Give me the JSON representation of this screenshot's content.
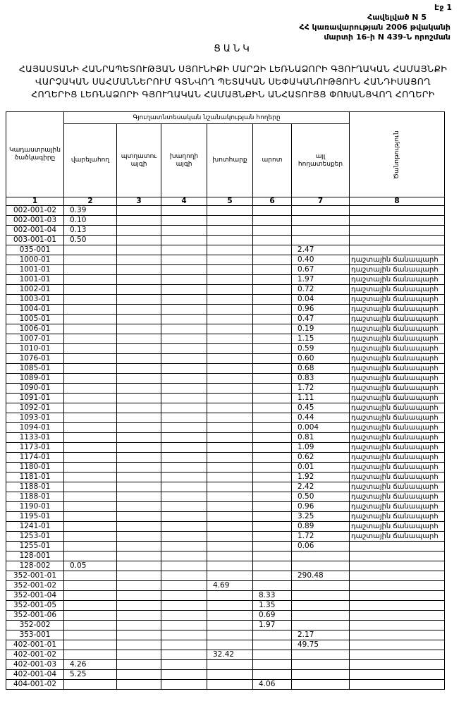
{
  "header": {
    "page": "Էջ 1",
    "annex": "Հավելված N 5",
    "decree_line1": "ՀՀ կառավարության 2006 թվականի",
    "decree_line2": "մարտի 16-ի N 439-Ն որոշման",
    "title": "ՑԱՆԿ",
    "subtitle": [
      "ՀԱՅԱՍՏԱՆԻ ՀԱՆՐԱՊԵՏՈՒԹՅԱՆ ՍՅՈՒՆԻՔԻ ՄԱՐԶԻ ԼԵՌՆԱՁՈՐԻ ԳՅՈՒՂԱԿԱՆ ՀԱՄԱՅՆՔԻ",
      "ՎԱՐՉԱԿԱՆ ՍԱՀՄԱՆՆԵՐՈՒՄ ԳՏՆՎՈՂ ՊԵՏԱԿԱՆ ՍԵՓԱԿԱՆՈՒԹՅՈՒՆ ՀԱՆԴԻՍԱՑՈՂ",
      "ՀՈՂԵՐԻՑ ԼԵՌՆԱՁՈՐԻ ԳՅՈՒՂԱԿԱՆ ՀԱՄԱՅՆՔԻՆ ԱՆՀԱՏՈՒՅՑ ՓՈԽԱՆՑՎՈՂ ՀՈՂԵՐԻ"
    ]
  },
  "table": {
    "group_header": "Գյուղատնտեսական նշանակության հողերը",
    "columns": [
      "Կադաստրային ծածկագիրը",
      "վարելահող",
      "պտղատու այգի",
      "խաղողի այգի",
      "խոտհարք",
      "արոտ",
      "այլ հողատեսքեր",
      "Ծանոթություն"
    ],
    "numbers": [
      "1",
      "2",
      "3",
      "4",
      "5",
      "6",
      "7",
      "8"
    ],
    "rows": [
      [
        "002-001-02",
        "0.39",
        null,
        null,
        null,
        null,
        null,
        null
      ],
      [
        "002-001-03",
        "0.10",
        null,
        null,
        null,
        null,
        null,
        null
      ],
      [
        "002-001-04",
        "0.13",
        null,
        null,
        null,
        null,
        null,
        null
      ],
      [
        "003-001-01",
        "0.50",
        null,
        null,
        null,
        null,
        null,
        null
      ],
      [
        "035-001",
        null,
        null,
        null,
        null,
        null,
        "2.47",
        null
      ],
      [
        "1000-01",
        null,
        null,
        null,
        null,
        null,
        "0.40",
        "դաշտային ճանապարհ"
      ],
      [
        "1001-01",
        null,
        null,
        null,
        null,
        null,
        "0.67",
        "դաշտային ճանապարհ"
      ],
      [
        "1001-01",
        null,
        null,
        null,
        null,
        null,
        "1.97",
        "դաշտային ճանապարհ"
      ],
      [
        "1002-01",
        null,
        null,
        null,
        null,
        null,
        "0.72",
        "դաշտային ճանապարհ"
      ],
      [
        "1003-01",
        null,
        null,
        null,
        null,
        null,
        "0.04",
        "դաշտային ճանապարհ"
      ],
      [
        "1004-01",
        null,
        null,
        null,
        null,
        null,
        "0.96",
        "դաշտային ճանապարհ"
      ],
      [
        "1005-01",
        null,
        null,
        null,
        null,
        null,
        "0.47",
        "դաշտային ճանապարհ"
      ],
      [
        "1006-01",
        null,
        null,
        null,
        null,
        null,
        "0.19",
        "դաշտային ճանապարհ"
      ],
      [
        "1007-01",
        null,
        null,
        null,
        null,
        null,
        "1.15",
        "դաշտային ճանապարհ"
      ],
      [
        "1010-01",
        null,
        null,
        null,
        null,
        null,
        "0.59",
        "դաշտային ճանապարհ"
      ],
      [
        "1076-01",
        null,
        null,
        null,
        null,
        null,
        "0.60",
        "դաշտային ճանապարհ"
      ],
      [
        "1085-01",
        null,
        null,
        null,
        null,
        null,
        "0.68",
        "դաշտային ճանապարհ"
      ],
      [
        "1089-01",
        null,
        null,
        null,
        null,
        null,
        "0.83",
        "դաշտային ճանապարհ"
      ],
      [
        "1090-01",
        null,
        null,
        null,
        null,
        null,
        "1.72",
        "դաշտային ճանապարհ"
      ],
      [
        "1091-01",
        null,
        null,
        null,
        null,
        null,
        "1.11",
        "դաշտային ճանապարհ"
      ],
      [
        "1092-01",
        null,
        null,
        null,
        null,
        null,
        "0.45",
        "դաշտային ճանապարհ"
      ],
      [
        "1093-01",
        null,
        null,
        null,
        null,
        null,
        "0.44",
        "դաշտային ճանապարհ"
      ],
      [
        "1094-01",
        null,
        null,
        null,
        null,
        null,
        "0.004",
        "դաշտային ճանապարհ"
      ],
      [
        "1133-01",
        null,
        null,
        null,
        null,
        null,
        "0.81",
        "դաշտային ճանապարհ"
      ],
      [
        "1173-01",
        null,
        null,
        null,
        null,
        null,
        "1.09",
        "դաշտային ճանապարհ"
      ],
      [
        "1174-01",
        null,
        null,
        null,
        null,
        null,
        "0.62",
        "դաշտային ճանապարհ"
      ],
      [
        "1180-01",
        null,
        null,
        null,
        null,
        null,
        "0.01",
        "դաշտային ճանապարհ"
      ],
      [
        "1181-01",
        null,
        null,
        null,
        null,
        null,
        "1.92",
        "դաշտային ճանապարհ"
      ],
      [
        "1188-01",
        null,
        null,
        null,
        null,
        null,
        "2.42",
        "դաշտային ճանապարհ"
      ],
      [
        "1188-01",
        null,
        null,
        null,
        null,
        null,
        "0.50",
        "դաշտային ճանապարհ"
      ],
      [
        "1190-01",
        null,
        null,
        null,
        null,
        null,
        "0.96",
        "դաշտային ճանապարհ"
      ],
      [
        "1195-01",
        null,
        null,
        null,
        null,
        null,
        "3.25",
        "դաշտային ճանապարհ"
      ],
      [
        "1241-01",
        null,
        null,
        null,
        null,
        null,
        "0.89",
        "դաշտային ճանապարհ"
      ],
      [
        "1253-01",
        null,
        null,
        null,
        null,
        null,
        "1.72",
        "դաշտային ճանապարհ"
      ],
      [
        "1255-01",
        null,
        null,
        null,
        null,
        null,
        "0.06",
        null
      ],
      [
        "128-001",
        null,
        null,
        null,
        null,
        null,
        null,
        null
      ],
      [
        "128-002",
        "0.05",
        null,
        null,
        null,
        null,
        null,
        null
      ],
      [
        "352-001-01",
        null,
        null,
        null,
        null,
        null,
        "290.48",
        null
      ],
      [
        "352-001-02",
        null,
        null,
        null,
        "4.69",
        null,
        null,
        null
      ],
      [
        "352-001-04",
        null,
        null,
        null,
        null,
        "8.33",
        null,
        null
      ],
      [
        "352-001-05",
        null,
        null,
        null,
        null,
        "1.35",
        null,
        null
      ],
      [
        "352-001-06",
        null,
        null,
        null,
        null,
        "0.69",
        null,
        null
      ],
      [
        "352-002",
        null,
        null,
        null,
        null,
        "1.97",
        null,
        null
      ],
      [
        "353-001",
        null,
        null,
        null,
        null,
        null,
        "2.17",
        null
      ],
      [
        "402-001-01",
        null,
        null,
        null,
        null,
        null,
        "49.75",
        null
      ],
      [
        "402-001-02",
        null,
        null,
        null,
        "32.42",
        null,
        null,
        null
      ],
      [
        "402-001-03",
        "4.26",
        null,
        null,
        null,
        null,
        null,
        null
      ],
      [
        "402-001-04",
        "5.25",
        null,
        null,
        null,
        null,
        null,
        null
      ],
      [
        "404-001-02",
        null,
        null,
        null,
        null,
        "4.06",
        null,
        null
      ]
    ]
  }
}
